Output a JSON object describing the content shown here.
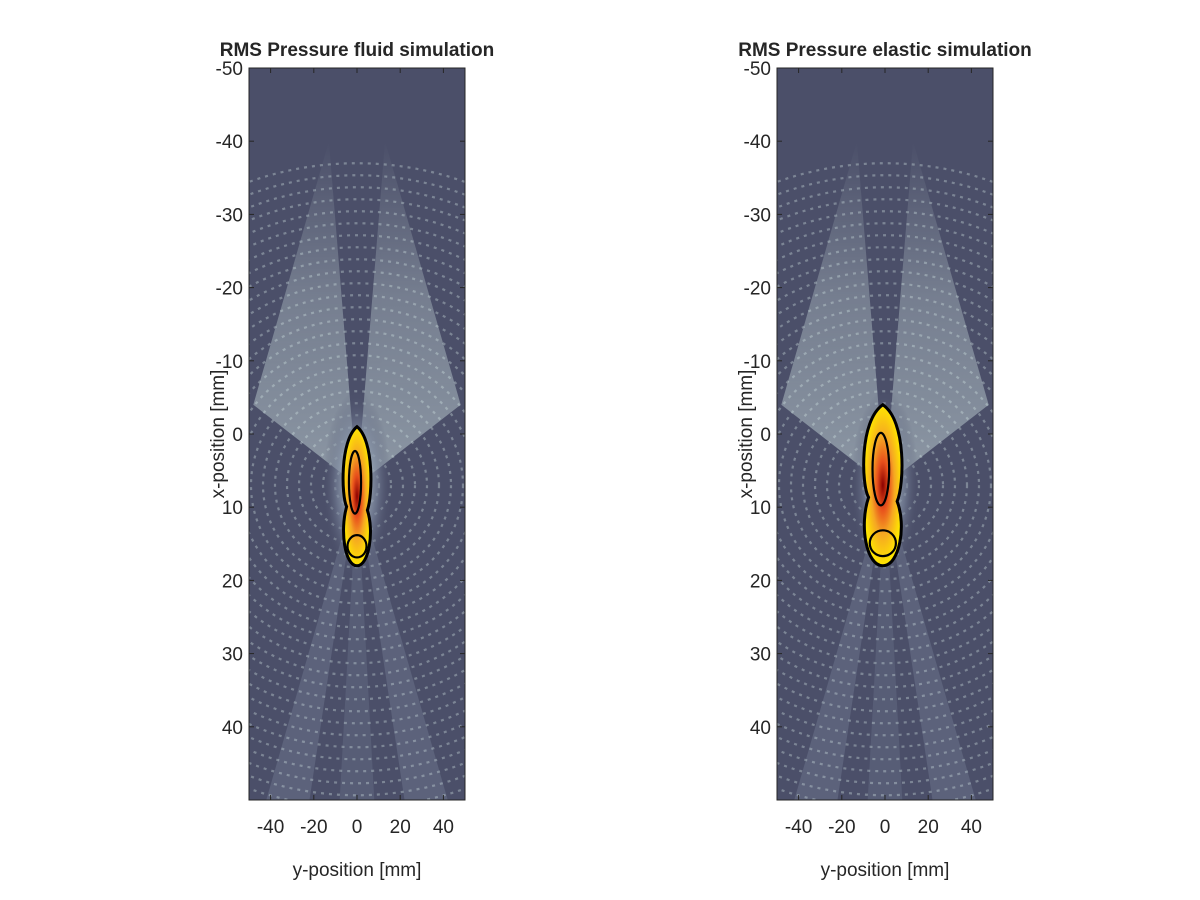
{
  "figure": {
    "background": "#ffffff"
  },
  "chart_data": [
    {
      "type": "heatmap",
      "title": "RMS Pressure fluid simulation",
      "xlabel": "y-position [mm]",
      "ylabel": "x-position [mm]",
      "xlim": [
        -50,
        50
      ],
      "ylim": [
        -50,
        50
      ],
      "y_reversed": true,
      "xticks": [
        -40,
        -20,
        0,
        20,
        40
      ],
      "yticks": [
        -50,
        -40,
        -30,
        -20,
        -10,
        0,
        10,
        20,
        30,
        40
      ],
      "xtick_labels": [
        "-40",
        "-20",
        "0",
        "20",
        "40"
      ],
      "ytick_labels": [
        "-50",
        "-40",
        "-30",
        "-20",
        "-10",
        "0",
        "10",
        "20",
        "30",
        "40"
      ],
      "colormap_background": [
        "#4b4f69",
        "#7e8aa0",
        "#d7eae8"
      ],
      "colormap_overlay": [
        "#ffe600",
        "#f5a623",
        "#e8501c",
        "#8b0000"
      ],
      "transducer_arc": {
        "apex_x": -80,
        "radius_mm": 80,
        "aperture_half_width_mm": 48,
        "inner_gap_half_width_mm": 13,
        "color": "#000000"
      },
      "focus": {
        "x_center": 7,
        "y_center": 0,
        "x_extent": [
          -1,
          18
        ],
        "y_extent": [
          -8,
          8
        ]
      },
      "contour_color": "#000000"
    },
    {
      "type": "heatmap",
      "title": "RMS Pressure elastic simulation",
      "xlabel": "y-position [mm]",
      "ylabel": "x-position [mm]",
      "xlim": [
        -50,
        50
      ],
      "ylim": [
        -50,
        50
      ],
      "y_reversed": true,
      "xticks": [
        -40,
        -20,
        0,
        20,
        40
      ],
      "yticks": [
        -50,
        -40,
        -30,
        -20,
        -10,
        0,
        10,
        20,
        30,
        40
      ],
      "xtick_labels": [
        "-40",
        "-20",
        "0",
        "20",
        "40"
      ],
      "ytick_labels": [
        "-50",
        "-40",
        "-30",
        "-20",
        "-10",
        "0",
        "10",
        "20",
        "30",
        "40"
      ],
      "colormap_background": [
        "#4b4f69",
        "#7e8aa0",
        "#d7eae8"
      ],
      "colormap_overlay": [
        "#ffe600",
        "#f5a623",
        "#e8501c",
        "#8b0000"
      ],
      "transducer_arc": {
        "apex_x": -80,
        "radius_mm": 80,
        "aperture_half_width_mm": 48,
        "inner_gap_half_width_mm": 13,
        "color": "#000000"
      },
      "focus": {
        "x_center": 7,
        "y_center": 0,
        "x_extent": [
          -4,
          18
        ],
        "y_extent": [
          -12,
          10
        ]
      },
      "contour_color": "#000000"
    }
  ]
}
